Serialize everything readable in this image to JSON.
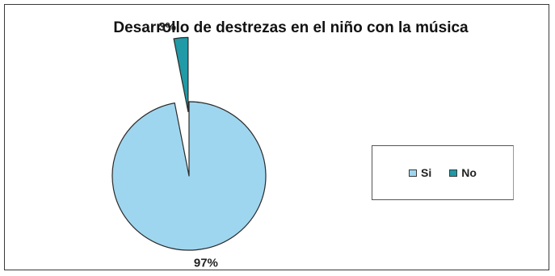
{
  "chart_data": {
    "type": "pie",
    "title": "Desarrollo de destrezas en el niño con la música",
    "slices": [
      {
        "label": "Si",
        "value": 97,
        "data_label": "97%",
        "color": "#9fd6ef"
      },
      {
        "label": "No",
        "value": 3,
        "data_label": "3%",
        "color": "#1f9aa6"
      }
    ],
    "exploded_slice": "No",
    "legend": {
      "placement": "right",
      "entries": [
        "Si",
        "No"
      ]
    }
  }
}
